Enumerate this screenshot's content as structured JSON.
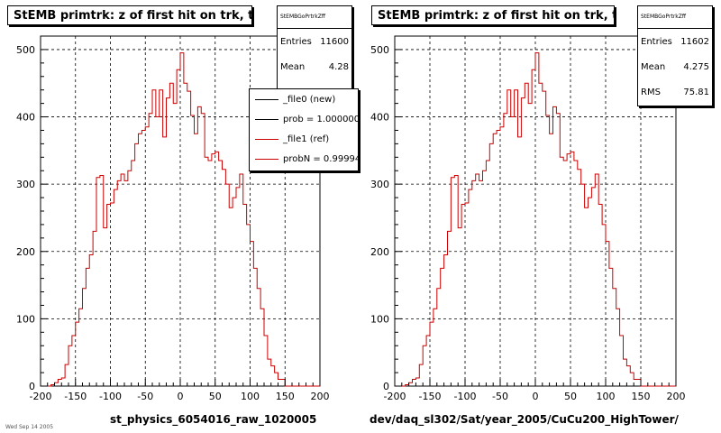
{
  "chart_data": [
    {
      "type": "bar",
      "title": "StEMB primtrk: z of first hit on trk, tpc",
      "xlabel": "st_physics_6054016_raw_1020005",
      "ylabel": "",
      "xlim": [
        -200,
        200
      ],
      "ylim": [
        0,
        520
      ],
      "x_ticks": [
        "-200",
        "-150",
        "-100",
        "-50",
        "0",
        "50",
        "100",
        "150",
        "200"
      ],
      "y_ticks": [
        "0",
        "100",
        "200",
        "300",
        "400",
        "500"
      ],
      "grid": true,
      "bin_width": 5,
      "x": [
        -190,
        -185,
        -180,
        -175,
        -170,
        -165,
        -160,
        -155,
        -150,
        -145,
        -140,
        -135,
        -130,
        -125,
        -120,
        -115,
        -110,
        -105,
        -100,
        -95,
        -90,
        -85,
        -80,
        -75,
        -70,
        -65,
        -60,
        -55,
        -50,
        -45,
        -40,
        -35,
        -30,
        -25,
        -20,
        -15,
        -10,
        -5,
        0,
        5,
        10,
        15,
        20,
        25,
        30,
        35,
        40,
        45,
        50,
        55,
        60,
        65,
        70,
        75,
        80,
        85,
        90,
        95,
        100,
        105,
        110,
        115,
        120,
        125,
        130,
        135,
        140,
        145,
        150,
        155,
        160,
        165,
        170,
        175,
        180,
        185,
        190,
        195
      ],
      "series": [
        {
          "name": "_file1 (ref)",
          "color": "#cc0000",
          "values": [
            0,
            2,
            5,
            10,
            12,
            32,
            60,
            75,
            95,
            115,
            145,
            175,
            195,
            230,
            310,
            313,
            235,
            270,
            272,
            292,
            305,
            315,
            305,
            320,
            335,
            360,
            375,
            380,
            385,
            405,
            440,
            400,
            440,
            370,
            428,
            450,
            420,
            470,
            495,
            450,
            438,
            402,
            375,
            415,
            405,
            340,
            335,
            345,
            348,
            335,
            322,
            300,
            265,
            280,
            295,
            315,
            270,
            240,
            215,
            175,
            145,
            115,
            75,
            40,
            30,
            20,
            10,
            10,
            0,
            0,
            0,
            0,
            0,
            0,
            0,
            0,
            0,
            0
          ]
        }
      ],
      "legend": {
        "placement": "top-right",
        "entries": [
          {
            "label": "_file0 (new)",
            "color": "#000000"
          },
          {
            "label": "prob = 1.000000",
            "color": "#000000"
          },
          {
            "label": "_file1 (ref)",
            "color": "#cc0000"
          },
          {
            "label": "probN = 0.99994",
            "color": "#cc0000"
          }
        ]
      },
      "stats": {
        "name": "StEMBGoPrtrkZff",
        "entries_label": "Entries",
        "entries": "11600",
        "mean_label": "Mean",
        "mean": "4.28"
      }
    },
    {
      "type": "bar",
      "title": "StEMB primtrk: z of first hit on trk, tpc",
      "xlabel": "dev/daq_sl302/Sat/year_2005/CuCu200_HighTower/",
      "ylabel": "",
      "xlim": [
        -200,
        200
      ],
      "ylim": [
        0,
        520
      ],
      "x_ticks": [
        "-200",
        "-150",
        "-100",
        "-50",
        "0",
        "50",
        "100",
        "150",
        "200"
      ],
      "y_ticks": [
        "0",
        "100",
        "200",
        "300",
        "400",
        "500"
      ],
      "grid": true,
      "bin_width": 5,
      "x": [
        -190,
        -185,
        -180,
        -175,
        -170,
        -165,
        -160,
        -155,
        -150,
        -145,
        -140,
        -135,
        -130,
        -125,
        -120,
        -115,
        -110,
        -105,
        -100,
        -95,
        -90,
        -85,
        -80,
        -75,
        -70,
        -65,
        -60,
        -55,
        -50,
        -45,
        -40,
        -35,
        -30,
        -25,
        -20,
        -15,
        -10,
        -5,
        0,
        5,
        10,
        15,
        20,
        25,
        30,
        35,
        40,
        45,
        50,
        55,
        60,
        65,
        70,
        75,
        80,
        85,
        90,
        95,
        100,
        105,
        110,
        115,
        120,
        125,
        130,
        135,
        140,
        145,
        150,
        155,
        160,
        165,
        170,
        175,
        180,
        185,
        190,
        195
      ],
      "series": [
        {
          "name": "",
          "color": "#cc0000",
          "values": [
            0,
            2,
            5,
            10,
            12,
            32,
            60,
            75,
            95,
            115,
            145,
            175,
            195,
            230,
            310,
            313,
            235,
            270,
            272,
            292,
            305,
            315,
            305,
            320,
            335,
            360,
            375,
            380,
            385,
            405,
            440,
            400,
            440,
            370,
            428,
            450,
            420,
            470,
            495,
            450,
            438,
            402,
            375,
            415,
            405,
            340,
            335,
            345,
            348,
            335,
            322,
            300,
            265,
            280,
            295,
            315,
            270,
            240,
            215,
            175,
            145,
            115,
            75,
            40,
            30,
            20,
            10,
            10,
            0,
            0,
            0,
            0,
            0,
            0,
            0,
            0,
            0,
            0
          ]
        }
      ],
      "stats": {
        "name": "StEMBGoPrtrkZff",
        "entries_label": "Entries",
        "entries": "11602",
        "mean_label": "Mean",
        "mean": "4.275",
        "rms_label": "RMS",
        "rms": "75.81"
      }
    }
  ],
  "footer": {
    "note": "Wed Sep 14 2005"
  }
}
